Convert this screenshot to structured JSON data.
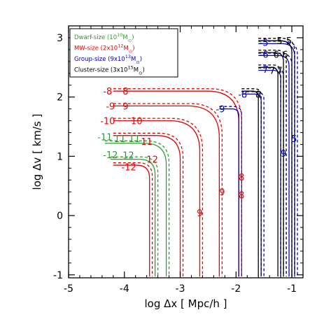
{
  "chart_data": {
    "type": "line",
    "xlabel": "log Δx [ Mpc/h ]",
    "ylabel": "log Δv [ km/s ]",
    "xlim": [
      -5,
      -0.8
    ],
    "ylim": [
      -1.05,
      3.2
    ],
    "xticks": [
      -5,
      -4,
      -3,
      -2,
      -1
    ],
    "yticks": [
      -1,
      0,
      1,
      2,
      3
    ],
    "legend_position": "top-left",
    "line_styles": {
      "solid": "measured",
      "dashed": "model"
    },
    "series": [
      {
        "name": "Dwarf-size (10¹⁰M⊙)",
        "legend_text": "Dwarf-size (10",
        "legend_exp": "10",
        "legend_unit": "M",
        "color": "#2ca02c",
        "contours": [
          {
            "level": "-11",
            "x_left": -4.35,
            "x_right": -3.25,
            "v_top": 1.22
          },
          {
            "level": "-12",
            "x_left": -4.25,
            "x_right": -3.45,
            "v_top": 0.95
          }
        ]
      },
      {
        "name": "MW-size (2×10¹²M⊙)",
        "legend_text": "MW-size (2x10",
        "legend_exp": "12",
        "legend_unit": "M",
        "color": "#ee0000",
        "contours": [
          {
            "level": "-8",
            "x_left": -4.2,
            "x_right": -1.95,
            "v_top": 2.1
          },
          {
            "level": "-9",
            "x_left": -4.2,
            "x_right": -2.3,
            "v_top": 1.85
          },
          {
            "level": "-10",
            "x_left": -4.2,
            "x_right": -2.65,
            "v_top": 1.6
          },
          {
            "level": "-11",
            "x_left": -4.2,
            "x_right": -3.0,
            "v_top": 1.35
          },
          {
            "level": "-12",
            "x_left": -4.2,
            "x_right": -3.55,
            "v_top": 0.85
          }
        ]
      },
      {
        "name": "Group-size (9×10¹³M⊙)",
        "legend_text": "Group-size (9x10",
        "legend_exp": "13",
        "legend_unit": "M",
        "color": "#0000cc",
        "contours": [
          {
            "level": "-5",
            "x_left": -1.6,
            "x_right": -0.95,
            "v_top": 2.9
          },
          {
            "level": "-6",
            "x_left": -1.6,
            "x_right": -1.05,
            "v_top": 2.7
          },
          {
            "level": "-7",
            "x_left": -1.6,
            "x_right": -1.2,
            "v_top": 2.45
          },
          {
            "level": "-8",
            "x_left": -1.9,
            "x_right": -1.55,
            "v_top": 2.05
          },
          {
            "level": "-9",
            "x_left": -2.3,
            "x_right": -1.95,
            "v_top": 1.8
          }
        ]
      },
      {
        "name": "Cluster-size (3×10¹⁵M⊙)",
        "legend_text": "Cluster-size (3x10",
        "legend_exp": "15",
        "legend_unit": "M",
        "color": "#000000",
        "contours": [
          {
            "level": "-5",
            "x_left": -1.6,
            "x_right": -1.0,
            "v_top": 2.95
          },
          {
            "level": "-6",
            "x_left": -1.6,
            "x_right": -1.15,
            "v_top": 2.75
          },
          {
            "level": "-7",
            "x_left": -1.6,
            "x_right": -1.25,
            "v_top": 2.5
          },
          {
            "level": "-8",
            "x_left": -1.9,
            "x_right": -1.6,
            "v_top": 2.1
          }
        ]
      }
    ],
    "annotations": [
      {
        "text": "-5",
        "x": -1.5,
        "y": 2.92,
        "color": "#0000cc"
      },
      {
        "text": "5",
        "x": -1.22,
        "y": 2.95,
        "color": "#000000"
      },
      {
        "text": "5",
        "x": -1.05,
        "y": 2.95,
        "color": "#000000"
      },
      {
        "text": "-6",
        "x": -1.5,
        "y": 2.72,
        "color": "#0000cc"
      },
      {
        "text": "6",
        "x": -1.28,
        "y": 2.72,
        "color": "#000000"
      },
      {
        "text": "6",
        "x": -1.12,
        "y": 2.72,
        "color": "#000000"
      },
      {
        "text": "-7",
        "x": -1.5,
        "y": 2.47,
        "color": "#0000cc"
      },
      {
        "text": "7",
        "x": -1.35,
        "y": 2.45,
        "color": "#000000"
      },
      {
        "text": "7",
        "x": -1.22,
        "y": 2.45,
        "color": "#000000"
      },
      {
        "text": "-8",
        "x": -1.88,
        "y": 2.05,
        "color": "#0000cc"
      },
      {
        "text": "8",
        "x": -1.6,
        "y": 2.05,
        "color": "#000000"
      },
      {
        "text": "-9",
        "x": -2.28,
        "y": 1.8,
        "color": "#0000cc"
      },
      {
        "text": "5",
        "x": -0.96,
        "y": 1.3,
        "color": "#0000cc"
      },
      {
        "text": "9",
        "x": -1.15,
        "y": 1.05,
        "color": "#0000cc"
      },
      {
        "text": "-8",
        "x": -4.3,
        "y": 2.1,
        "color": "#ee0000"
      },
      {
        "text": "8",
        "x": -3.98,
        "y": 2.1,
        "color": "#ee0000"
      },
      {
        "text": "-9",
        "x": -4.25,
        "y": 1.85,
        "color": "#ee0000"
      },
      {
        "text": "9",
        "x": -3.98,
        "y": 1.85,
        "color": "#ee0000"
      },
      {
        "text": "-10",
        "x": -4.3,
        "y": 1.6,
        "color": "#ee0000"
      },
      {
        "text": "10",
        "x": -3.78,
        "y": 1.6,
        "color": "#ee0000"
      },
      {
        "text": "11",
        "x": -3.6,
        "y": 1.25,
        "color": "#ee0000"
      },
      {
        "text": "12",
        "x": -3.5,
        "y": 0.95,
        "color": "#ee0000"
      },
      {
        "text": "-12",
        "x": -3.92,
        "y": 0.82,
        "color": "#ee0000"
      },
      {
        "text": "-11",
        "x": -4.35,
        "y": 1.33,
        "color": "#2ca02c"
      },
      {
        "text": "11",
        "x": -4.08,
        "y": 1.3,
        "color": "#2ca02c"
      },
      {
        "text": "11",
        "x": -3.82,
        "y": 1.3,
        "color": "#2ca02c"
      },
      {
        "text": "-12",
        "x": -4.25,
        "y": 1.03,
        "color": "#2ca02c"
      },
      {
        "text": "12",
        "x": -3.93,
        "y": 1.02,
        "color": "#2ca02c"
      },
      {
        "text": "8",
        "x": -1.9,
        "y": 0.65,
        "color": "#ee0000"
      },
      {
        "text": "8",
        "x": -1.9,
        "y": 0.35,
        "color": "#ee0000"
      },
      {
        "text": "9",
        "x": -2.25,
        "y": 0.4,
        "color": "#ee0000"
      },
      {
        "text": "9",
        "x": -2.65,
        "y": 0.05,
        "color": "#ee0000"
      }
    ]
  }
}
